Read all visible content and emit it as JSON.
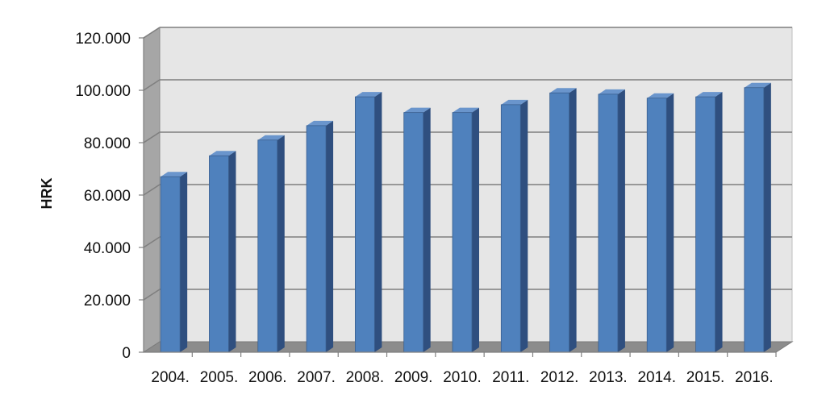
{
  "chart_data": {
    "type": "bar",
    "title": "",
    "xlabel": "",
    "ylabel": "HRK",
    "categories": [
      "2004.",
      "2005.",
      "2006.",
      "2007.",
      "2008.",
      "2009.",
      "2010.",
      "2011.",
      "2012.",
      "2013.",
      "2014.",
      "2015.",
      "2016."
    ],
    "values": [
      67000,
      75000,
      81000,
      86500,
      97500,
      91500,
      91500,
      94500,
      99000,
      98500,
      97000,
      97500,
      101000
    ],
    "ylim": [
      0,
      120000
    ],
    "yticks": [
      0,
      20000,
      40000,
      60000,
      80000,
      100000,
      120000
    ],
    "ytick_labels": [
      "0",
      "20.000",
      "40.000",
      "60.000",
      "80.000",
      "100.000",
      "120.000"
    ],
    "grid": true,
    "legend": "none",
    "style": "3d-column",
    "colors": {
      "bar_front": "#4F81BD",
      "bar_side": "#2F4F7F",
      "bar_top": "#6A95CC",
      "back_wall": "#E6E6E6",
      "side_wall": "#A6A6A6",
      "floor": "#8C8C8C",
      "gridline": "#7F7F7F"
    }
  }
}
